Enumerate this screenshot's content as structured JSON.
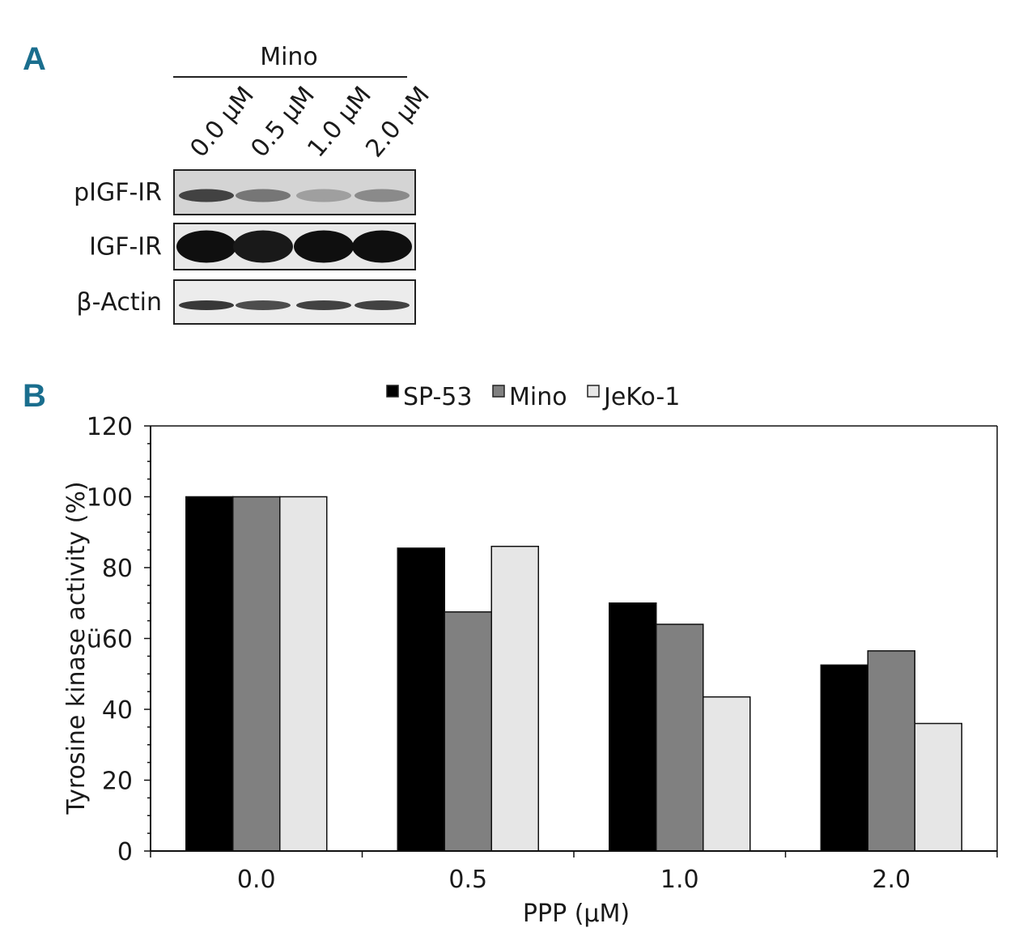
{
  "panel_a": {
    "letter": "A",
    "cell_line": "Mino",
    "lanes": [
      "0.0 μM",
      "0.5 μM",
      "1.0 μM",
      "2.0 μM"
    ],
    "blots": [
      {
        "label": "pIGF-IR",
        "intensity": [
          0.75,
          0.5,
          0.3,
          0.4
        ]
      },
      {
        "label": "IGF-IR",
        "intensity": [
          1.0,
          0.95,
          1.0,
          1.0
        ]
      },
      {
        "label": "β-Actin",
        "intensity": [
          0.8,
          0.7,
          0.75,
          0.75
        ]
      }
    ]
  },
  "chart_data": {
    "type": "bar",
    "panel_letter": "B",
    "categories": [
      "0.0",
      "0.5",
      "1.0",
      "2.0"
    ],
    "series": [
      {
        "name": "SP-53",
        "color": "#000000",
        "values": [
          100,
          85.5,
          70,
          52.5
        ]
      },
      {
        "name": "Mino",
        "color": "#808080",
        "values": [
          100,
          67.5,
          64,
          56.5
        ]
      },
      {
        "name": "JeKo-1",
        "color": "#e6e6e6",
        "values": [
          100,
          86,
          43.5,
          36
        ]
      }
    ],
    "xlabel": "PPP (μM)",
    "ylabel": "Tyrosine kinase activity (%)",
    "ylim": [
      0,
      120
    ],
    "yticks": [
      "0",
      "20",
      "40",
      "ü60",
      "80",
      "100",
      "120"
    ],
    "grid": false,
    "legend_position": "top"
  }
}
